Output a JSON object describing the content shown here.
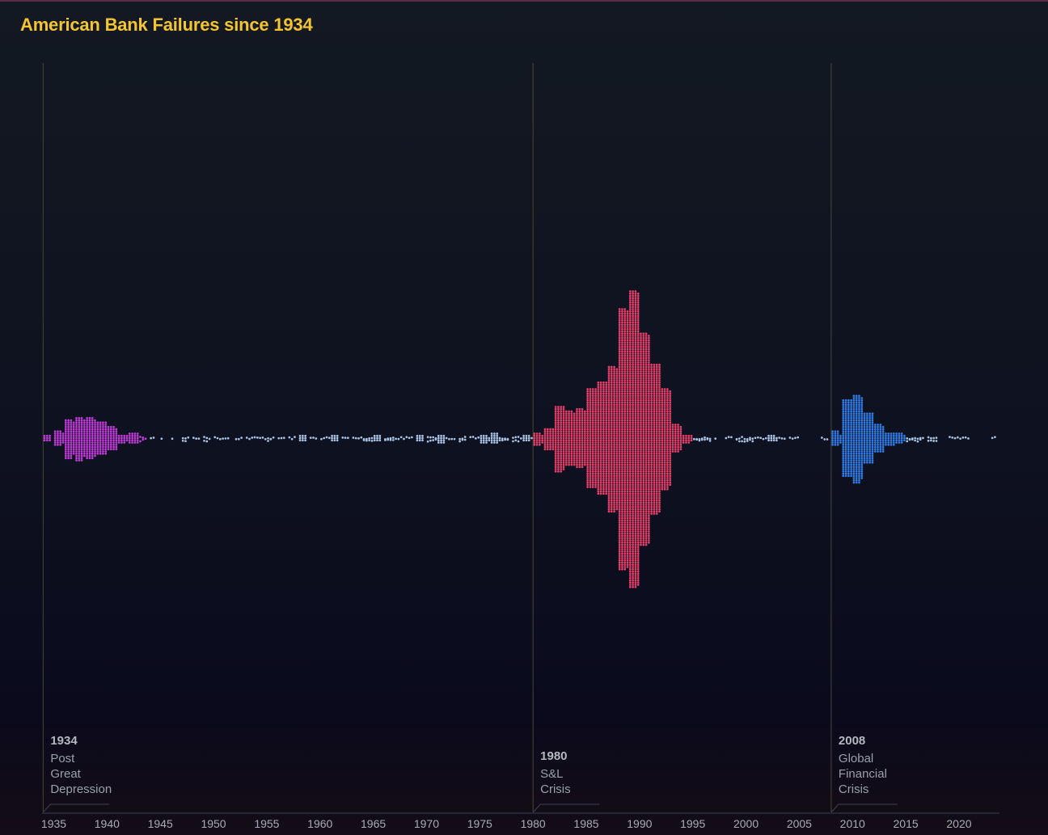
{
  "chart_data": {
    "type": "scatter",
    "subtype": "beeswarm",
    "title": "American Bank Failures since 1934",
    "xlabel": "",
    "ylabel": "",
    "xlim": [
      1933.9,
      2023.8
    ],
    "x_ticks": [
      1935,
      1940,
      1945,
      1950,
      1955,
      1960,
      1965,
      1970,
      1975,
      1980,
      1985,
      1990,
      1995,
      2000,
      2005,
      2010,
      2015,
      2020
    ],
    "grid": false,
    "legend": "none",
    "colors": {
      "post_depression": "#c23ad9",
      "quiet_periods": "#aac4e6",
      "sl_crisis": "#e83f6a",
      "financial_crisis": "#2f7de8"
    },
    "eras": [
      {
        "name": "post_depression",
        "start": 1934,
        "end": 1943,
        "color": "#c23ad9"
      },
      {
        "name": "quiet_periods",
        "start": 1944,
        "end": 1979,
        "color": "#aac4e6"
      },
      {
        "name": "sl_crisis",
        "start": 1980,
        "end": 1994,
        "color": "#e83f6a"
      },
      {
        "name": "quiet_periods",
        "start": 1995,
        "end": 2007,
        "color": "#aac4e6"
      },
      {
        "name": "financial_crisis",
        "start": 2008,
        "end": 2014,
        "color": "#2f7de8"
      },
      {
        "name": "quiet_periods",
        "start": 2015,
        "end": 2023,
        "color": "#aac4e6"
      }
    ],
    "failures_per_year": [
      {
        "year": 1934,
        "count": 9
      },
      {
        "year": 1935,
        "count": 26
      },
      {
        "year": 1936,
        "count": 69
      },
      {
        "year": 1937,
        "count": 77
      },
      {
        "year": 1938,
        "count": 74
      },
      {
        "year": 1939,
        "count": 60
      },
      {
        "year": 1940,
        "count": 43
      },
      {
        "year": 1941,
        "count": 15
      },
      {
        "year": 1942,
        "count": 20
      },
      {
        "year": 1943,
        "count": 5
      },
      {
        "year": 1944,
        "count": 2
      },
      {
        "year": 1945,
        "count": 1
      },
      {
        "year": 1946,
        "count": 1
      },
      {
        "year": 1947,
        "count": 5
      },
      {
        "year": 1948,
        "count": 3
      },
      {
        "year": 1949,
        "count": 5
      },
      {
        "year": 1950,
        "count": 4
      },
      {
        "year": 1951,
        "count": 2
      },
      {
        "year": 1952,
        "count": 3
      },
      {
        "year": 1953,
        "count": 4
      },
      {
        "year": 1954,
        "count": 4
      },
      {
        "year": 1955,
        "count": 5
      },
      {
        "year": 1956,
        "count": 3
      },
      {
        "year": 1957,
        "count": 3
      },
      {
        "year": 1958,
        "count": 9
      },
      {
        "year": 1959,
        "count": 3
      },
      {
        "year": 1960,
        "count": 4
      },
      {
        "year": 1961,
        "count": 9
      },
      {
        "year": 1962,
        "count": 3
      },
      {
        "year": 1963,
        "count": 4
      },
      {
        "year": 1964,
        "count": 8
      },
      {
        "year": 1965,
        "count": 9
      },
      {
        "year": 1966,
        "count": 8
      },
      {
        "year": 1967,
        "count": 4
      },
      {
        "year": 1968,
        "count": 3
      },
      {
        "year": 1969,
        "count": 9
      },
      {
        "year": 1970,
        "count": 8
      },
      {
        "year": 1971,
        "count": 13
      },
      {
        "year": 1972,
        "count": 3
      },
      {
        "year": 1973,
        "count": 6
      },
      {
        "year": 1974,
        "count": 4
      },
      {
        "year": 1975,
        "count": 14
      },
      {
        "year": 1976,
        "count": 17
      },
      {
        "year": 1977,
        "count": 6
      },
      {
        "year": 1978,
        "count": 7
      },
      {
        "year": 1979,
        "count": 10
      },
      {
        "year": 1980,
        "count": 22
      },
      {
        "year": 1981,
        "count": 40
      },
      {
        "year": 1982,
        "count": 119
      },
      {
        "year": 1983,
        "count": 99
      },
      {
        "year": 1984,
        "count": 106
      },
      {
        "year": 1985,
        "count": 180
      },
      {
        "year": 1986,
        "count": 204
      },
      {
        "year": 1987,
        "count": 262
      },
      {
        "year": 1988,
        "count": 470
      },
      {
        "year": 1989,
        "count": 534
      },
      {
        "year": 1990,
        "count": 382
      },
      {
        "year": 1991,
        "count": 271
      },
      {
        "year": 1992,
        "count": 181
      },
      {
        "year": 1993,
        "count": 50
      },
      {
        "year": 1994,
        "count": 15
      },
      {
        "year": 1995,
        "count": 8
      },
      {
        "year": 1996,
        "count": 6
      },
      {
        "year": 1997,
        "count": 1
      },
      {
        "year": 1998,
        "count": 3
      },
      {
        "year": 1999,
        "count": 8
      },
      {
        "year": 2000,
        "count": 7
      },
      {
        "year": 2001,
        "count": 4
      },
      {
        "year": 2002,
        "count": 11
      },
      {
        "year": 2003,
        "count": 3
      },
      {
        "year": 2004,
        "count": 4
      },
      {
        "year": 2005,
        "count": 0
      },
      {
        "year": 2006,
        "count": 0
      },
      {
        "year": 2007,
        "count": 3
      },
      {
        "year": 2008,
        "count": 25
      },
      {
        "year": 2009,
        "count": 140
      },
      {
        "year": 2010,
        "count": 157
      },
      {
        "year": 2011,
        "count": 92
      },
      {
        "year": 2012,
        "count": 51
      },
      {
        "year": 2013,
        "count": 24
      },
      {
        "year": 2014,
        "count": 18
      },
      {
        "year": 2015,
        "count": 8
      },
      {
        "year": 2016,
        "count": 5
      },
      {
        "year": 2017,
        "count": 8
      },
      {
        "year": 2018,
        "count": 0
      },
      {
        "year": 2019,
        "count": 4
      },
      {
        "year": 2020,
        "count": 4
      },
      {
        "year": 2021,
        "count": 0
      },
      {
        "year": 2022,
        "count": 0
      },
      {
        "year": 2023,
        "count": 2
      }
    ],
    "annotations": [
      {
        "year_label": "1934",
        "lines": [
          "Post",
          "Great",
          "Depression"
        ],
        "x": 1934
      },
      {
        "year_label": "1980",
        "lines": [
          "S&L",
          "Crisis"
        ],
        "x": 1980
      },
      {
        "year_label": "2008",
        "lines": [
          "Global",
          "Financial",
          "Crisis"
        ],
        "x": 2008
      }
    ]
  }
}
